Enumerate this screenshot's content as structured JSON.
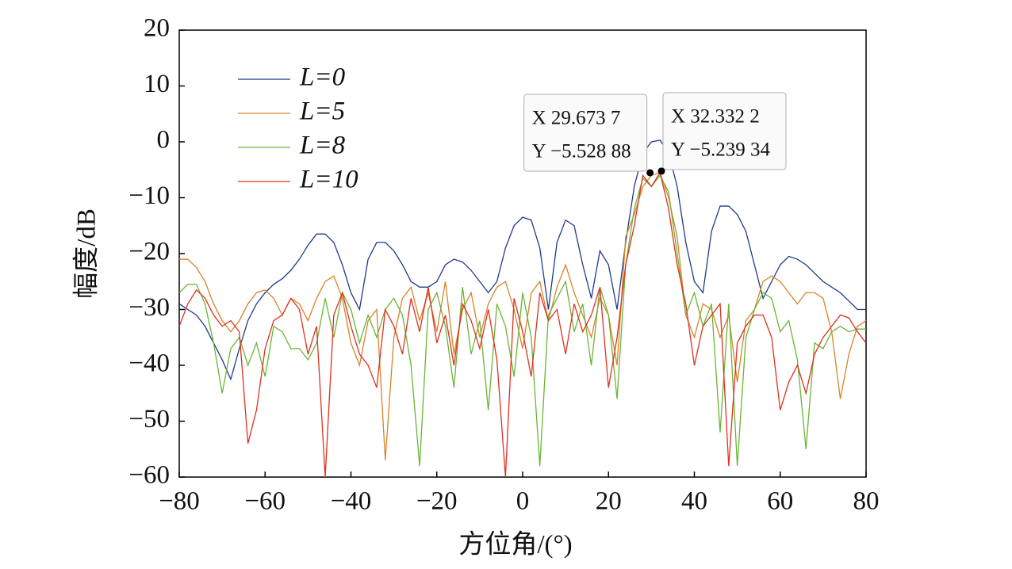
{
  "chart_data": {
    "type": "line",
    "xlabel": "方位角/(°)",
    "ylabel": "幅度/dB",
    "xlim": [
      -80,
      80
    ],
    "ylim": [
      -60,
      20
    ],
    "xticks": [
      {
        "value": -80,
        "label": "−80"
      },
      {
        "value": -60,
        "label": "−60"
      },
      {
        "value": -40,
        "label": "−40"
      },
      {
        "value": -20,
        "label": "−20"
      },
      0,
      20,
      40,
      60,
      80
    ],
    "yticks": [
      {
        "value": -60,
        "label": "−60"
      },
      {
        "value": -50,
        "label": "−50"
      },
      {
        "value": -40,
        "label": "−40"
      },
      {
        "value": -30,
        "label": "−30"
      },
      {
        "value": -20,
        "label": "−20"
      },
      {
        "value": -10,
        "label": "−10"
      },
      0,
      10,
      20
    ],
    "legend": "upper left",
    "x": [
      -80,
      -78,
      -76,
      -74,
      -72,
      -70,
      -68,
      -66,
      -64,
      -62,
      -60,
      -58,
      -56,
      -54,
      -52,
      -50,
      -48,
      -46,
      -44,
      -42,
      -40,
      -38,
      -36,
      -34,
      -32,
      -30,
      -28,
      -26,
      -24,
      -22,
      -20,
      -18,
      -16,
      -14,
      -12,
      -10,
      -8,
      -6,
      -4,
      -2,
      0,
      2,
      4,
      6,
      8,
      10,
      12,
      14,
      16,
      18,
      20,
      22,
      24,
      26,
      28,
      30,
      32,
      34,
      36,
      38,
      40,
      42,
      44,
      46,
      48,
      50,
      52,
      54,
      56,
      58,
      60,
      62,
      64,
      66,
      68,
      70,
      72,
      74,
      76,
      78,
      80
    ],
    "series": [
      {
        "name": "L=0",
        "color": "#1f3a8a",
        "values": [
          -29,
          -30,
          -31,
          -33,
          -36,
          -39,
          -42.5,
          -37,
          -32,
          -29,
          -27,
          -25.5,
          -24.5,
          -23,
          -21,
          -18.5,
          -16.5,
          -16.5,
          -18,
          -22,
          -27,
          -30,
          -21,
          -18,
          -18,
          -19.5,
          -22,
          -25,
          -26,
          -26,
          -25,
          -22,
          -21,
          -21.5,
          -23,
          -25,
          -27,
          -25,
          -19,
          -15,
          -13.5,
          -14,
          -19,
          -30,
          -18,
          -14,
          -15,
          -22,
          -28,
          -19.5,
          -22,
          -30,
          -18,
          -8,
          -2,
          0,
          0.3,
          -2,
          -8,
          -18,
          -25,
          -27,
          -16,
          -11.5,
          -11.5,
          -13,
          -16,
          -22,
          -28,
          -25,
          -22,
          -20.5,
          -21,
          -22,
          -23.5,
          -25,
          -26,
          -27,
          -28.5,
          -30,
          -30
        ]
      },
      {
        "name": "L=5",
        "color": "#d9822b",
        "values": [
          -21,
          -21,
          -22.5,
          -25,
          -29,
          -32,
          -34,
          -32,
          -29,
          -27,
          -26.5,
          -28,
          -31,
          -28,
          -29,
          -32,
          -28,
          -25,
          -24,
          -28,
          -36,
          -40,
          -32,
          -30,
          -57,
          -35,
          -28,
          -26,
          -32,
          -27,
          -34,
          -25,
          -38,
          -30,
          -27,
          -35,
          -29,
          -26,
          -25,
          -30,
          -37,
          -27,
          -25,
          -32,
          -26,
          -22,
          -27,
          -31,
          -35,
          -28,
          -31,
          -40,
          -17,
          -13,
          -8,
          -6,
          -5.5,
          -10,
          -17,
          -31,
          -35,
          -29,
          -30,
          -35,
          -31,
          -43,
          -32,
          -30,
          -25,
          -24,
          -25,
          -27,
          -29,
          -27,
          -27,
          -28,
          -34,
          -46,
          -38,
          -33,
          -32
        ]
      },
      {
        "name": "L=8",
        "color": "#6ab534",
        "values": [
          -27,
          -25.5,
          -25.5,
          -29,
          -36,
          -45,
          -37,
          -35,
          -40,
          -36,
          -42,
          -33,
          -34,
          -37,
          -37,
          -39,
          -36,
          -28,
          -35,
          -27,
          -30,
          -36,
          -31,
          -35,
          -30,
          -28,
          -31,
          -40,
          -58,
          -30,
          -27,
          -33,
          -44,
          -26,
          -38,
          -32,
          -48,
          -29,
          -33,
          -42,
          -27,
          -35,
          -58,
          -31,
          -28,
          -25,
          -34,
          -29,
          -40,
          -26,
          -31,
          -46,
          -22,
          -12,
          -6.5,
          -8,
          -6,
          -9,
          -20,
          -31,
          -27,
          -33,
          -29,
          -52,
          -29,
          -58,
          -35,
          -30,
          -27,
          -28,
          -34,
          -32,
          -39,
          -55,
          -36,
          -37,
          -34,
          -33,
          -34,
          -33.5,
          -33.5
        ]
      },
      {
        "name": "L=10",
        "color": "#e0301e",
        "values": [
          -33,
          -29,
          -26.5,
          -28,
          -31,
          -33,
          -32,
          -34,
          -54,
          -48,
          -37,
          -32,
          -31,
          -28,
          -30,
          -38,
          -33,
          -60,
          -31,
          -27,
          -33,
          -38,
          -40,
          -44,
          -30,
          -33,
          -38,
          -28,
          -34,
          -26,
          -36,
          -31,
          -40,
          -29,
          -32,
          -37,
          -30,
          -39,
          -60,
          -28,
          -34,
          -42,
          -27,
          -32,
          -30,
          -38,
          -29,
          -34,
          -31,
          -26,
          -44,
          -35,
          -22,
          -15,
          -6,
          -8,
          -5.5,
          -12,
          -22,
          -29,
          -40,
          -33,
          -31,
          -29,
          -58,
          -36,
          -33,
          -31,
          -31,
          -35,
          -48,
          -43,
          -40,
          -45,
          -38,
          -35,
          -33,
          -31,
          -31.5,
          -34,
          -36
        ]
      }
    ],
    "annotations": [
      {
        "x": 29.6737,
        "y": -5.52888,
        "x_text": "X 29.673 7",
        "y_text": "Y −5.528 88"
      },
      {
        "x": 32.3322,
        "y": -5.23934,
        "x_text": "X 32.332  2",
        "y_text": "Y −5.239 34"
      }
    ]
  }
}
